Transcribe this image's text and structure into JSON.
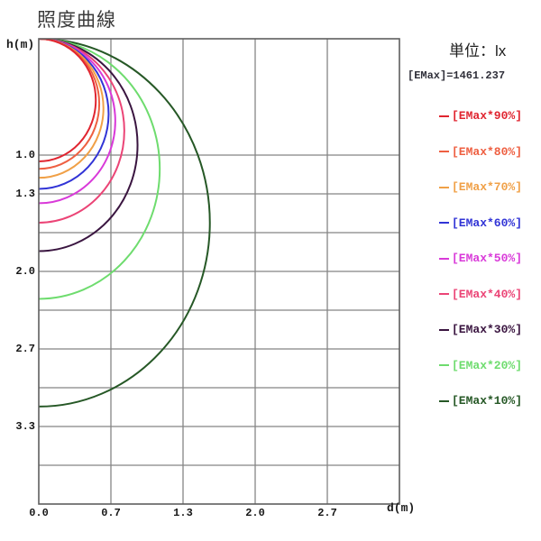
{
  "title": "照度曲線",
  "unit_label": "単位：lx",
  "emax_label": "[EMax]=1461.237",
  "emax_value_lx": 1461.237,
  "axes": {
    "y_label": "h(m)",
    "x_label": "d(m)"
  },
  "legend": {
    "items": [
      {
        "label": "[EMax*90%]",
        "percent": 90,
        "color": "#e02530"
      },
      {
        "label": "[EMax*80%]",
        "percent": 80,
        "color": "#ee5f41"
      },
      {
        "label": "[EMax*70%]",
        "percent": 70,
        "color": "#f0a047"
      },
      {
        "label": "[EMax*60%]",
        "percent": 60,
        "color": "#3134d6"
      },
      {
        "label": "[EMax*50%]",
        "percent": 50,
        "color": "#d93ad9"
      },
      {
        "label": "[EMax*40%]",
        "percent": 40,
        "color": "#eb4476"
      },
      {
        "label": "[EMax*30%]",
        "percent": 30,
        "color": "#3a1540"
      },
      {
        "label": "[EMax*20%]",
        "percent": 20,
        "color": "#6edc6e"
      },
      {
        "label": "[EMax*10%]",
        "percent": 10,
        "color": "#265826"
      }
    ]
  },
  "chart_data": {
    "type": "line",
    "subtype": "iso-illuminance contour circles from a point source at origin",
    "title": "照度曲線",
    "unit": "lx",
    "emax_lx": 1461.237,
    "xlabel": "d(m)",
    "ylabel": "h(m)",
    "xlim": [
      0,
      3.3333
    ],
    "ylim": [
      0,
      4.0
    ],
    "y_axis_inverted_downward": true,
    "grid": true,
    "grid_color": "#858585",
    "border_color": "#5e5e5e",
    "x_gridlines_m": [
      0.6667,
      1.3333,
      2.0,
      2.6667
    ],
    "y_gridlines_m": [
      1.0,
      1.3333,
      1.6667,
      2.0,
      2.3333,
      2.6667,
      3.0,
      3.3333,
      3.6667
    ],
    "x_ticks": [
      {
        "label": "0.0",
        "value": 0
      },
      {
        "label": "0.7",
        "value": 0.6667
      },
      {
        "label": "1.3",
        "value": 1.3333
      },
      {
        "label": "2.0",
        "value": 2.0
      },
      {
        "label": "2.7",
        "value": 2.6667
      }
    ],
    "y_ticks": [
      {
        "label": "1.0",
        "value": 1.0
      },
      {
        "label": "1.3",
        "value": 1.3333
      },
      {
        "label": "2.0",
        "value": 2.0
      },
      {
        "label": "2.7",
        "value": 2.6667
      },
      {
        "label": "3.3",
        "value": 3.3333
      }
    ],
    "series": [
      {
        "name": "[EMax*90%]",
        "fraction_of_emax": 0.9,
        "color": "#e02530",
        "circle_diameter_m": 1.0541,
        "axis_crossing_h_m": 1.0541,
        "max_d_m": 0.527
      },
      {
        "name": "[EMax*80%]",
        "fraction_of_emax": 0.8,
        "color": "#ee5f41",
        "circle_diameter_m": 1.118,
        "axis_crossing_h_m": 1.118,
        "max_d_m": 0.559
      },
      {
        "name": "[EMax*70%]",
        "fraction_of_emax": 0.7,
        "color": "#f0a047",
        "circle_diameter_m": 1.1952,
        "axis_crossing_h_m": 1.1952,
        "max_d_m": 0.598
      },
      {
        "name": "[EMax*60%]",
        "fraction_of_emax": 0.6,
        "color": "#3134d6",
        "circle_diameter_m": 1.291,
        "axis_crossing_h_m": 1.291,
        "max_d_m": 0.645
      },
      {
        "name": "[EMax*50%]",
        "fraction_of_emax": 0.5,
        "color": "#d93ad9",
        "circle_diameter_m": 1.4142,
        "axis_crossing_h_m": 1.4142,
        "max_d_m": 0.707
      },
      {
        "name": "[EMax*40%]",
        "fraction_of_emax": 0.4,
        "color": "#eb4476",
        "circle_diameter_m": 1.5811,
        "axis_crossing_h_m": 1.5811,
        "max_d_m": 0.791
      },
      {
        "name": "[EMax*30%]",
        "fraction_of_emax": 0.3,
        "color": "#3a1540",
        "circle_diameter_m": 1.8257,
        "axis_crossing_h_m": 1.8257,
        "max_d_m": 0.913
      },
      {
        "name": "[EMax*20%]",
        "fraction_of_emax": 0.2,
        "color": "#6edc6e",
        "circle_diameter_m": 2.2361,
        "axis_crossing_h_m": 2.2361,
        "max_d_m": 1.118
      },
      {
        "name": "[EMax*10%]",
        "fraction_of_emax": 0.1,
        "color": "#265826",
        "circle_diameter_m": 3.1623,
        "axis_crossing_h_m": 3.1623,
        "max_d_m": 1.581
      }
    ],
    "note": "Each contour is a circle tangent to the ceiling line h=0 at d=0, re-crossing the d=0 axis at depth 1/sqrt(fraction) metres."
  }
}
